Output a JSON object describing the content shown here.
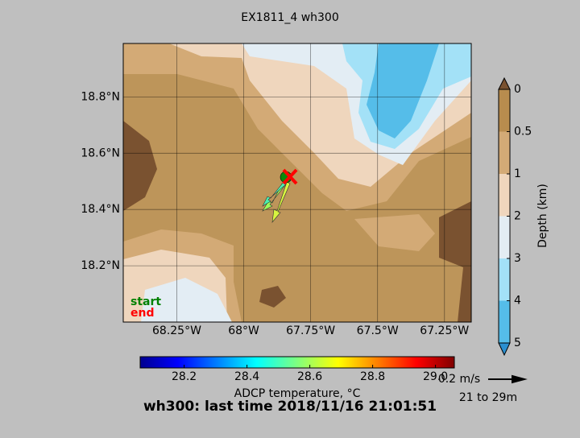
{
  "title": "EX1811_4 wh300",
  "map": {
    "xlim": [
      -68.45,
      -67.15
    ],
    "ylim": [
      18.0,
      18.99
    ],
    "xticks": [
      {
        "value": -68.25,
        "label": "68.25°W"
      },
      {
        "value": -68,
        "label": "68°W"
      },
      {
        "value": -67.75,
        "label": "67.75°W"
      },
      {
        "value": -67.5,
        "label": "67.5°W"
      },
      {
        "value": -67.25,
        "label": "67.25°W"
      }
    ],
    "yticks": [
      {
        "value": 18.2,
        "label": "18.2°N"
      },
      {
        "value": 18.4,
        "label": "18.4°N"
      },
      {
        "value": 18.6,
        "label": "18.6°N"
      },
      {
        "value": 18.8,
        "label": "18.8°N"
      }
    ],
    "legend": {
      "start": "start",
      "end": "end"
    }
  },
  "depth_colorbar": {
    "label": "Depth (km)",
    "ticks": [
      0,
      0.5,
      1,
      2,
      3,
      4,
      5
    ],
    "colors": [
      "#b88c4e",
      "#d3aa76",
      "#efd6bd",
      "#e3edf3",
      "#a3e1f7",
      "#55bde9"
    ]
  },
  "temperature_colorbar": {
    "label": "ADCP temperature, °C",
    "xlim": [
      28.06,
      29.06
    ],
    "xticks": [
      28.2,
      28.4,
      28.6,
      28.8,
      {
        "value": 29,
        "label": "29.0"
      }
    ]
  },
  "status": "wh300: last time 2018/11/16 21:01:51",
  "scale_label": "0.2 m/s",
  "depth_range": "21 to 29m"
}
